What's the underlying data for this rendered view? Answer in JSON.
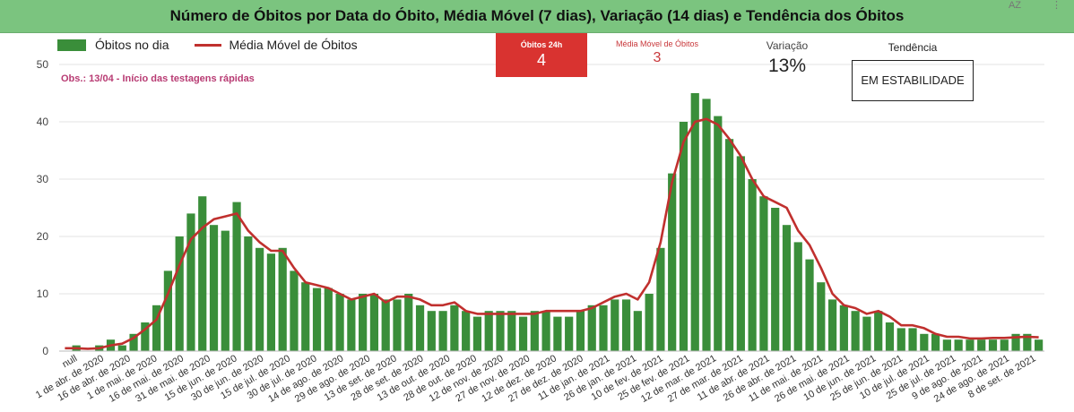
{
  "title": "Número de Óbitos por Data do Óbito, Média Móvel (7 dias), Variação (14 dias) e Tendência dos Óbitos",
  "icons": {
    "sort": "AZ",
    "menu": "⋮"
  },
  "colors": {
    "bars": "#3a8e3a",
    "line": "#c0302e",
    "header": "#7bc47f",
    "kpi": "#d93330"
  },
  "legend": {
    "bars": "Óbitos no dia",
    "line": "Média Móvel de Óbitos"
  },
  "note": "Obs.: 13/04 - Início das testagens rápidas",
  "kpis": {
    "deaths24h": {
      "label": "Óbitos 24h",
      "value": "4"
    },
    "moving_avg": {
      "label": "Média Móvel de Óbitos",
      "value": "3"
    },
    "variation": {
      "label": "Variação",
      "value": "13%"
    },
    "trend": {
      "label": "Tendência",
      "value": "EM ESTABILIDADE"
    }
  },
  "chart_data": {
    "type": "bar",
    "ylim": [
      0,
      50
    ],
    "yticks": [
      0,
      10,
      20,
      30,
      40,
      50
    ],
    "grid": true,
    "legend_position": "top-left",
    "x_tick_labels": [
      "null",
      "1 de abr. de 2020",
      "16 de abr. de 2020",
      "1 de mai. de 2020",
      "16 de mai. de 2020",
      "31 de mai. de 2020",
      "15 de jun. de 2020",
      "30 de jun. de 2020",
      "15 de jul. de 2020",
      "30 de jul. de 2020",
      "14 de ago. de 2020",
      "29 de ago. de 2020",
      "13 de set. de 2020",
      "28 de set. de 2020",
      "13 de out. de 2020",
      "28 de out. de 2020",
      "12 de nov. de 2020",
      "27 de nov. de 2020",
      "12 de dez. de 2020",
      "27 de dez. de 2020",
      "11 de jan. de 2021",
      "26 de jan. de 2021",
      "10 de fev. de 2021",
      "25 de fev. de 2021",
      "12 de mar. de 2021",
      "27 de mar. de 2021",
      "11 de abr. de 2021",
      "26 de abr. de 2021",
      "11 de mai. de 2021",
      "26 de mai. de 2021",
      "10 de jun. de 2021",
      "25 de jun. de 2021",
      "10 de jul. de 2021",
      "25 de jul. de 2021",
      "9 de ago. de 2021",
      "24 de ago. de 2021",
      "8 de set. de 2021"
    ],
    "series": [
      {
        "name": "Óbitos no dia",
        "kind": "bar",
        "values": [
          0,
          1,
          0,
          1,
          2,
          1,
          3,
          5,
          8,
          14,
          20,
          24,
          27,
          22,
          21,
          26,
          20,
          18,
          17,
          18,
          14,
          12,
          11,
          11,
          10,
          9,
          10,
          10,
          9,
          9,
          10,
          8,
          7,
          7,
          8,
          7,
          6,
          7,
          7,
          7,
          6,
          7,
          7,
          6,
          6,
          7,
          8,
          8,
          9,
          9,
          7,
          10,
          18,
          31,
          40,
          45,
          44,
          41,
          37,
          34,
          30,
          27,
          25,
          22,
          19,
          16,
          12,
          9,
          8,
          7,
          6,
          7,
          5,
          4,
          4,
          3,
          3,
          2,
          2,
          2,
          2,
          2,
          2,
          3,
          3,
          2
        ]
      },
      {
        "name": "Média Móvel de Óbitos",
        "kind": "line",
        "values": [
          0.5,
          0.5,
          0.4,
          0.5,
          1,
          1.3,
          2.3,
          3.8,
          5.5,
          10,
          15,
          19.5,
          21.5,
          23,
          23.5,
          24,
          21,
          19,
          17.5,
          17.5,
          14.5,
          12,
          11.5,
          11,
          10,
          9,
          9.5,
          10,
          8.5,
          9.5,
          9.5,
          9,
          8,
          8,
          8.5,
          7,
          6.5,
          6.5,
          6.5,
          6.5,
          6.5,
          6.5,
          7,
          7,
          7,
          7,
          7.5,
          8.5,
          9.5,
          10,
          9,
          12,
          19,
          29.5,
          36.5,
          40,
          40.5,
          39.5,
          37,
          34,
          30,
          27,
          26,
          25,
          21,
          18.5,
          14.5,
          10,
          8,
          7.5,
          6.5,
          7,
          6,
          4.5,
          4.5,
          4,
          3,
          2.5,
          2.5,
          2.2,
          2.2,
          2.3,
          2.3,
          2.4,
          2.5,
          2.4
        ]
      }
    ]
  }
}
